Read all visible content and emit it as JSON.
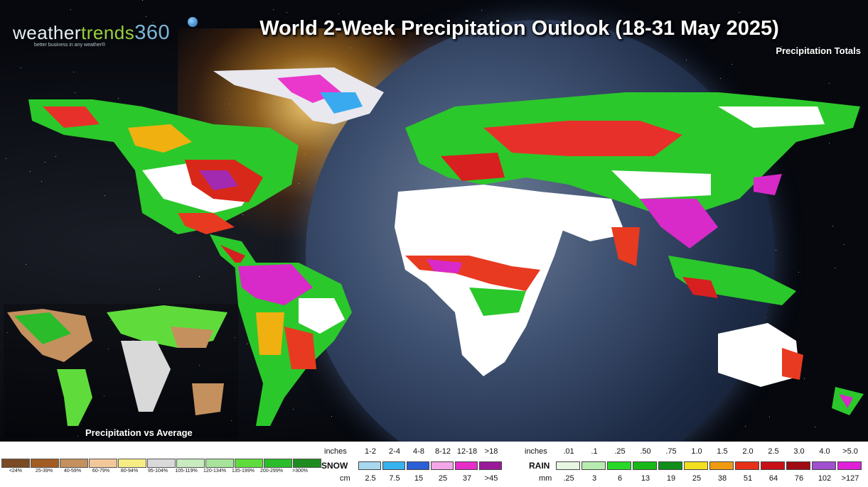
{
  "logo": {
    "part1": "weather",
    "part2": "trends",
    "part3": "360",
    "tagline": "better business in any weather®"
  },
  "title": "World 2-Week Precipitation Outlook (18-31 May 2025)",
  "subtitle": "Precipitation Totals",
  "inset_label": "Precipitation vs Average",
  "anomaly_legend": {
    "items": [
      {
        "label": "<24%",
        "color": "#7a4a22"
      },
      {
        "label": "25-39%",
        "color": "#a25c22"
      },
      {
        "label": "40-59%",
        "color": "#c4905e"
      },
      {
        "label": "60-79%",
        "color": "#f2c79a"
      },
      {
        "label": "80-94%",
        "color": "#f6ee84"
      },
      {
        "label": "95-104%",
        "color": "#d9d9d9"
      },
      {
        "label": "105-119%",
        "color": "#c7ecbf"
      },
      {
        "label": "120-134%",
        "color": "#a8e39b"
      },
      {
        "label": "135-199%",
        "color": "#5fdc3c"
      },
      {
        "label": "200-299%",
        "color": "#2bbc2b"
      },
      {
        "label": ">300%",
        "color": "#1f8c1f"
      }
    ]
  },
  "snow_legend": {
    "inches_label": "inches",
    "head_label": "SNOW",
    "cm_label": "cm",
    "inches": [
      "1-2",
      "2-4",
      "4-8",
      "8-12",
      "12-18",
      ">18"
    ],
    "cm": [
      "2.5",
      "7.5",
      "15",
      "25",
      "37",
      ">45"
    ],
    "colors": [
      "#a8d8f0",
      "#36b2f0",
      "#2a5fd8",
      "#f4a7e8",
      "#e62ec8",
      "#9a1a9a"
    ]
  },
  "rain_legend": {
    "inches_label": "inches",
    "head_label": "RAIN",
    "mm_label": "mm",
    "inches": [
      ".01",
      ".1",
      ".25",
      ".50",
      ".75",
      "1.0",
      "1.5",
      "2.0",
      "2.5",
      "3.0",
      "4.0",
      ">5.0"
    ],
    "mm": [
      ".25",
      "3",
      "6",
      "13",
      "19",
      "25",
      "38",
      "51",
      "64",
      "76",
      "102",
      ">127"
    ],
    "colors": [
      "#e6f6e0",
      "#b7ecb0",
      "#28d828",
      "#18b818",
      "#0f8f1a",
      "#f0e020",
      "#f09a10",
      "#e83018",
      "#c81018",
      "#a00a12",
      "#a050d0",
      "#e020d8"
    ]
  }
}
